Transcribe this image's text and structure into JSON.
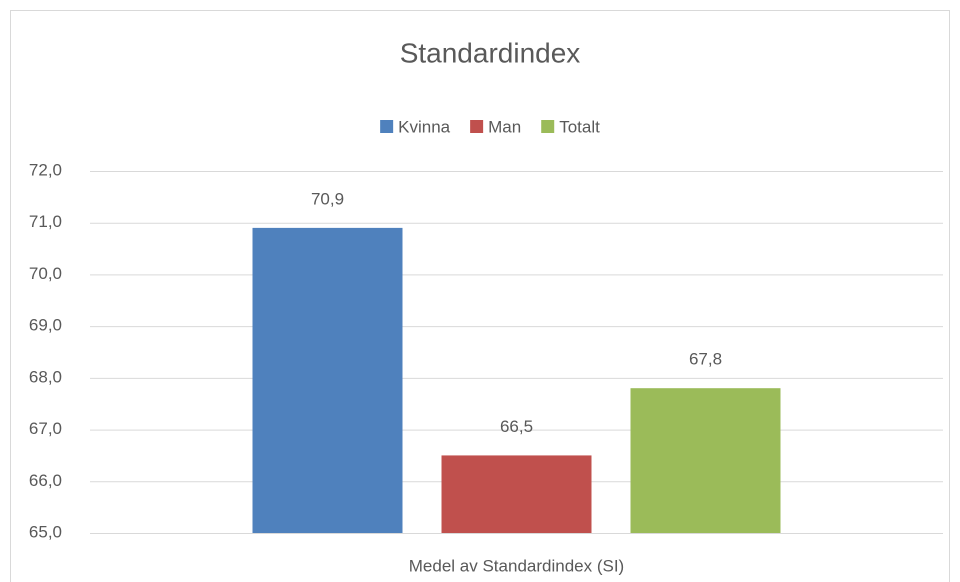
{
  "chart_data": {
    "type": "bar",
    "title": "Standardindex",
    "categories": [
      "Medel av Standardindex (SI)"
    ],
    "series": [
      {
        "name": "Kvinna",
        "color": "#4f81bd",
        "values": [
          70.9
        ],
        "value_labels": [
          "70,9"
        ]
      },
      {
        "name": "Man",
        "color": "#c0504d",
        "values": [
          66.5
        ],
        "value_labels": [
          "66,5"
        ]
      },
      {
        "name": "Totalt",
        "color": "#9bbb59",
        "values": [
          67.8
        ],
        "value_labels": [
          "67,8"
        ]
      }
    ],
    "ylim": [
      65,
      72
    ],
    "yticks": [
      {
        "value": 65,
        "label": "65,0"
      },
      {
        "value": 66,
        "label": "66,0"
      },
      {
        "value": 67,
        "label": "67,0"
      },
      {
        "value": 68,
        "label": "68,0"
      },
      {
        "value": 69,
        "label": "69,0"
      },
      {
        "value": 70,
        "label": "70,0"
      },
      {
        "value": 71,
        "label": "71,0"
      },
      {
        "value": 72,
        "label": "72,0"
      }
    ],
    "grid": true,
    "legend": "top"
  }
}
